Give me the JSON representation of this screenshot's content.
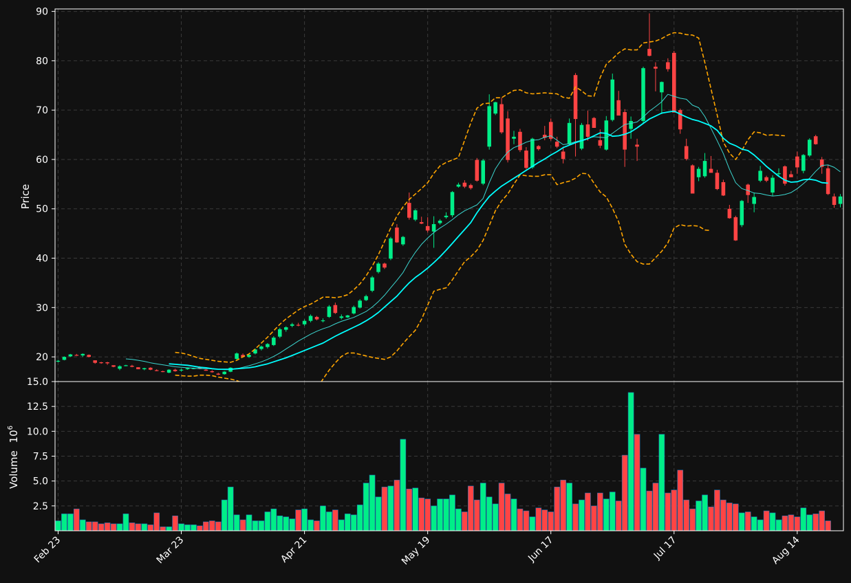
{
  "colors": {
    "background": "#111111",
    "up": "#00ee88",
    "down": "#ff4444",
    "grid": "#3a3a3a",
    "sma_short": "#3cd6d0",
    "sma_long": "#00ffff",
    "bollinger": "#ffa500",
    "text": "#ffffff"
  },
  "chart_data": {
    "type": "candlestick",
    "price_axis": {
      "label": "Price",
      "range": [
        15,
        90.5
      ],
      "ticks": [
        "20",
        "30",
        "40",
        "50",
        "60",
        "70",
        "80",
        "90"
      ]
    },
    "volume_axis": {
      "label": "Volume",
      "exponent": "6",
      "range": [
        0,
        15
      ],
      "ticks": [
        "2.5",
        "5.0",
        "7.5",
        "10.0",
        "12.5",
        "15.0"
      ]
    },
    "x_ticks": [
      {
        "label": "Feb 23",
        "i": 0
      },
      {
        "label": "Mar 23",
        "i": 20
      },
      {
        "label": "Apr 21",
        "i": 40
      },
      {
        "label": "May 19",
        "i": 60
      },
      {
        "label": "Jun 17",
        "i": 80
      },
      {
        "label": "Jul 17",
        "i": 100
      },
      {
        "label": "Aug 14",
        "i": 120
      }
    ],
    "grid": true,
    "candles_ohlc": [
      [
        19.1,
        19.4,
        18.9,
        19.2
      ],
      [
        19.4,
        20.1,
        19.3,
        20.0
      ],
      [
        20.1,
        20.6,
        20.0,
        20.5
      ],
      [
        20.4,
        20.6,
        20.2,
        20.3
      ],
      [
        20.3,
        20.7,
        20.0,
        20.6
      ],
      [
        20.4,
        20.5,
        19.9,
        20.0
      ],
      [
        19.3,
        19.3,
        18.6,
        18.8
      ],
      [
        18.9,
        19.0,
        18.6,
        18.8
      ],
      [
        18.9,
        19.0,
        18.4,
        18.7
      ],
      [
        18.3,
        18.3,
        17.9,
        18.0
      ],
      [
        17.6,
        18.3,
        17.3,
        18.1
      ],
      [
        18.2,
        18.4,
        18.1,
        18.3
      ],
      [
        18.2,
        18.4,
        17.9,
        18.0
      ],
      [
        17.9,
        17.9,
        17.5,
        17.5
      ],
      [
        17.5,
        17.8,
        17.3,
        17.7
      ],
      [
        17.8,
        17.9,
        17.3,
        17.4
      ],
      [
        17.3,
        17.5,
        17.1,
        17.2
      ],
      [
        17.1,
        17.2,
        16.9,
        17.0
      ],
      [
        16.8,
        17.5,
        16.7,
        17.4
      ],
      [
        17.4,
        17.6,
        17.0,
        17.1
      ],
      [
        17.3,
        17.6,
        17.0,
        17.4
      ],
      [
        17.5,
        17.8,
        17.4,
        17.7
      ],
      [
        17.6,
        17.8,
        17.5,
        17.7
      ],
      [
        17.9,
        18.1,
        17.5,
        17.6
      ],
      [
        17.4,
        17.5,
        17.2,
        17.2
      ],
      [
        17.1,
        17.3,
        16.8,
        16.9
      ],
      [
        16.6,
        16.8,
        16.3,
        16.4
      ],
      [
        16.5,
        17.1,
        16.4,
        17.0
      ],
      [
        17.0,
        17.9,
        16.9,
        17.8
      ],
      [
        19.6,
        20.9,
        19.4,
        20.7
      ],
      [
        20.4,
        20.7,
        19.9,
        20.0
      ],
      [
        20.0,
        20.6,
        19.8,
        20.4
      ],
      [
        20.7,
        21.7,
        20.5,
        21.5
      ],
      [
        21.6,
        22.3,
        21.3,
        22.1
      ],
      [
        22.0,
        22.8,
        21.7,
        22.6
      ],
      [
        22.4,
        24.2,
        22.2,
        23.9
      ],
      [
        24.1,
        25.9,
        23.8,
        25.6
      ],
      [
        25.5,
        26.2,
        25.1,
        26.0
      ],
      [
        26.3,
        26.9,
        26.0,
        26.6
      ],
      [
        26.5,
        26.9,
        26.2,
        26.4
      ],
      [
        26.6,
        27.6,
        26.3,
        27.3
      ],
      [
        27.3,
        28.6,
        27.0,
        28.3
      ],
      [
        28.1,
        28.3,
        27.4,
        27.6
      ],
      [
        27.3,
        27.8,
        27.0,
        27.4
      ],
      [
        28.1,
        30.5,
        27.9,
        30.2
      ],
      [
        30.5,
        31.0,
        28.7,
        28.9
      ],
      [
        27.9,
        28.6,
        27.6,
        28.2
      ],
      [
        28.0,
        28.5,
        27.9,
        28.4
      ],
      [
        28.8,
        30.4,
        28.6,
        30.1
      ],
      [
        30.0,
        31.7,
        29.8,
        31.4
      ],
      [
        31.5,
        32.6,
        31.3,
        32.3
      ],
      [
        33.4,
        36.4,
        33.1,
        36.1
      ],
      [
        37.2,
        39.2,
        36.9,
        38.9
      ],
      [
        38.9,
        39.1,
        37.8,
        38.1
      ],
      [
        39.9,
        44.3,
        39.6,
        44.0
      ],
      [
        46.2,
        46.9,
        43.1,
        43.2
      ],
      [
        42.8,
        44.5,
        42.5,
        44.3
      ],
      [
        51.2,
        53.3,
        47.8,
        48.2
      ],
      [
        47.8,
        49.9,
        47.5,
        49.7
      ],
      [
        47.3,
        48.4,
        46.9,
        47.0
      ],
      [
        46.5,
        48.3,
        45.2,
        45.6
      ],
      [
        45.4,
        48.5,
        42.1,
        46.9
      ],
      [
        47.1,
        47.9,
        46.8,
        47.6
      ],
      [
        48.3,
        49.3,
        48.0,
        48.6
      ],
      [
        48.7,
        53.6,
        48.3,
        53.4
      ],
      [
        54.5,
        55.3,
        54.3,
        54.9
      ],
      [
        55.3,
        55.8,
        54.2,
        54.5
      ],
      [
        54.8,
        55.1,
        53.9,
        54.2
      ],
      [
        59.9,
        60.3,
        55.5,
        55.7
      ],
      [
        55.1,
        60.1,
        54.8,
        59.8
      ],
      [
        62.6,
        73.2,
        62.0,
        70.8
      ],
      [
        69.3,
        71.7,
        69.0,
        71.6
      ],
      [
        71.2,
        72.5,
        65.2,
        65.5
      ],
      [
        68.3,
        69.8,
        59.4,
        59.9
      ],
      [
        64.2,
        65.8,
        63.1,
        64.6
      ],
      [
        65.6,
        66.2,
        61.5,
        61.9
      ],
      [
        61.8,
        62.5,
        58.0,
        58.3
      ],
      [
        58.4,
        64.4,
        58.1,
        64.2
      ],
      [
        62.7,
        62.9,
        61.8,
        62.1
      ],
      [
        65.0,
        66.8,
        63.9,
        64.4
      ],
      [
        67.6,
        68.3,
        63.8,
        64.2
      ],
      [
        63.6,
        64.6,
        62.3,
        62.6
      ],
      [
        61.6,
        62.6,
        59.2,
        60.1
      ],
      [
        63.1,
        68.3,
        62.9,
        67.4
      ],
      [
        77.1,
        77.5,
        60.6,
        68.2
      ],
      [
        62.2,
        67.4,
        61.9,
        67.0
      ],
      [
        67.1,
        69.9,
        63.8,
        64.6
      ],
      [
        68.4,
        68.6,
        67.2,
        66.4
      ],
      [
        63.9,
        66.1,
        62.3,
        62.8
      ],
      [
        62.0,
        68.8,
        61.8,
        67.9
      ],
      [
        68.0,
        77.4,
        67.7,
        76.2
      ],
      [
        72.0,
        73.9,
        69.2,
        68.9
      ],
      [
        69.6,
        70.2,
        58.5,
        62.0
      ],
      [
        66.2,
        68.7,
        64.2,
        67.8
      ],
      [
        63.0,
        64.2,
        59.7,
        62.6
      ],
      [
        67.8,
        78.8,
        67.2,
        78.5
      ],
      [
        82.4,
        89.6,
        80.9,
        81.0
      ],
      [
        78.8,
        79.7,
        73.8,
        78.4
      ],
      [
        73.6,
        75.8,
        69.2,
        75.7
      ],
      [
        79.7,
        80.5,
        77.8,
        78.3
      ],
      [
        81.6,
        82.0,
        70.2,
        69.5
      ],
      [
        70.0,
        70.3,
        65.2,
        66.1
      ],
      [
        62.7,
        64.2,
        59.8,
        60.1
      ],
      [
        58.8,
        59.0,
        53.9,
        53.1
      ],
      [
        56.4,
        58.5,
        55.6,
        58.1
      ],
      [
        56.6,
        61.3,
        56.3,
        59.7
      ],
      [
        58.1,
        60.7,
        57.4,
        57.3
      ],
      [
        57.3,
        57.9,
        53.8,
        54.0
      ],
      [
        55.4,
        55.9,
        52.6,
        52.7
      ],
      [
        50.0,
        50.8,
        48.0,
        48.1
      ],
      [
        48.3,
        48.6,
        43.5,
        43.6
      ],
      [
        46.7,
        51.8,
        46.3,
        51.6
      ],
      [
        54.9,
        55.1,
        51.2,
        52.8
      ],
      [
        51.0,
        53.3,
        49.3,
        52.4
      ],
      [
        55.7,
        58.7,
        55.4,
        57.7
      ],
      [
        56.4,
        56.7,
        55.4,
        55.7
      ],
      [
        53.3,
        56.8,
        52.6,
        56.3
      ],
      [
        57.1,
        58.2,
        56.7,
        57.2
      ],
      [
        58.6,
        58.8,
        54.7,
        55.1
      ],
      [
        57.0,
        57.7,
        56.6,
        56.4
      ],
      [
        60.6,
        61.6,
        57.1,
        58.4
      ],
      [
        57.7,
        61.1,
        57.2,
        60.9
      ],
      [
        60.8,
        64.3,
        60.5,
        64.0
      ],
      [
        64.7,
        65.0,
        63.0,
        63.1
      ],
      [
        60.0,
        60.5,
        57.1,
        58.5
      ],
      [
        58.2,
        58.9,
        52.8,
        53.0
      ],
      [
        52.5,
        53.1,
        50.2,
        50.8
      ],
      [
        51.0,
        53.0,
        50.3,
        52.5
      ]
    ],
    "volume": [
      1.0,
      1.7,
      1.7,
      2.2,
      1.1,
      0.9,
      0.9,
      0.7,
      0.8,
      0.7,
      0.7,
      1.7,
      0.8,
      0.7,
      0.7,
      0.6,
      1.8,
      0.4,
      0.4,
      1.5,
      0.7,
      0.6,
      0.6,
      0.5,
      0.9,
      1.0,
      0.9,
      3.1,
      4.4,
      1.6,
      1.1,
      1.6,
      1.0,
      1.0,
      1.9,
      2.2,
      1.5,
      1.4,
      1.2,
      2.1,
      2.2,
      1.1,
      1.0,
      2.5,
      1.9,
      2.1,
      1.1,
      1.7,
      1.6,
      2.6,
      4.8,
      5.6,
      3.4,
      4.4,
      4.5,
      5.1,
      9.2,
      4.2,
      4.3,
      3.3,
      3.2,
      2.5,
      3.2,
      3.2,
      3.6,
      2.2,
      1.9,
      4.5,
      3.1,
      4.8,
      3.4,
      2.7,
      4.8,
      3.7,
      3.2,
      2.2,
      2.0,
      1.4,
      2.3,
      2.1,
      1.9,
      4.4,
      5.1,
      4.8,
      2.7,
      3.1,
      3.8,
      2.5,
      3.8,
      3.2,
      3.9,
      3.0,
      7.6,
      13.9,
      9.7,
      6.3,
      4.0,
      4.8,
      9.7,
      3.8,
      4.1,
      6.1,
      3.1,
      2.2,
      3.0,
      3.6,
      2.4,
      4.1,
      3.1,
      2.8,
      2.7,
      1.8,
      1.9,
      1.4,
      1.1,
      2.0,
      1.8,
      1.1,
      1.5,
      1.6,
      1.4,
      2.3,
      1.6,
      1.7,
      2.0,
      1.0
    ],
    "sma_short": [
      null,
      null,
      null,
      null,
      null,
      null,
      null,
      null,
      null,
      null,
      null,
      19.6,
      19.5,
      19.3,
      19.1,
      18.8,
      18.6,
      18.4,
      18.2,
      18.0,
      17.9,
      17.8,
      17.7,
      17.6,
      17.6,
      17.6,
      17.5,
      17.4,
      17.4,
      17.6,
      17.9,
      18.2,
      18.6,
      19.0,
      19.5,
      20.1,
      20.8,
      21.6,
      22.4,
      23.2,
      23.9,
      24.6,
      25.2,
      25.7,
      26.1,
      26.7,
      27.2,
      27.6,
      28.0,
      28.6,
      29.2,
      30.1,
      31.2,
      32.5,
      34.0,
      35.5,
      37.1,
      39.3,
      41.2,
      42.8,
      44.1,
      45.2,
      46.1,
      46.9,
      47.8,
      48.8,
      49.6,
      50.2,
      50.8,
      52.1,
      55.3,
      58.1,
      60.0,
      61.5,
      62.4,
      62.9,
      63.5,
      63.9,
      64.0,
      64.5,
      64.8,
      63.9,
      63.0,
      63.2,
      63.6,
      63.9,
      64.3,
      64.6,
      64.5,
      64.4,
      65.3,
      66.2,
      67.1,
      67.3,
      67.6,
      68.6,
      69.8,
      70.7,
      71.7,
      73.2,
      72.8,
      72.4,
      72.2,
      71.0,
      70.5,
      68.7,
      66.3,
      63.8,
      61.2,
      58.0,
      55.3,
      54.1,
      53.7,
      53.2,
      53.1,
      52.8,
      52.6,
      52.7,
      52.9,
      53.3,
      54.1,
      55.1,
      56.2,
      57.6,
      58.8,
      58.9,
      58.4,
      57.5
    ],
    "sma_long": [
      null,
      null,
      null,
      null,
      null,
      null,
      null,
      null,
      null,
      null,
      null,
      null,
      null,
      null,
      null,
      null,
      null,
      null,
      18.6,
      18.5,
      18.4,
      18.3,
      18.1,
      17.9,
      17.8,
      17.6,
      17.5,
      17.5,
      17.5,
      17.6,
      17.7,
      17.8,
      18.0,
      18.3,
      18.6,
      19.0,
      19.4,
      19.8,
      20.3,
      20.8,
      21.3,
      21.8,
      22.3,
      22.8,
      23.5,
      24.2,
      24.8,
      25.4,
      26.0,
      26.6,
      27.3,
      28.1,
      29.0,
      30.1,
      31.2,
      32.3,
      33.7,
      35.0,
      36.1,
      37.0,
      38.0,
      39.1,
      40.3,
      41.6,
      43.0,
      44.4,
      45.8,
      47.2,
      49.2,
      50.9,
      52.5,
      53.6,
      54.6,
      55.4,
      56.2,
      57.0,
      57.8,
      58.6,
      59.4,
      60.1,
      60.9,
      61.6,
      62.4,
      62.9,
      63.4,
      63.8,
      64.2,
      64.8,
      65.4,
      65.3,
      64.7,
      64.8,
      65.1,
      65.6,
      66.4,
      67.3,
      68.2,
      68.8,
      69.4,
      69.6,
      69.8,
      69.2,
      68.6,
      68.1,
      67.8,
      67.3,
      66.8,
      65.9,
      64.3,
      63.3,
      62.8,
      62.1,
      61.8,
      60.9,
      59.8,
      58.6,
      57.6,
      56.6,
      55.8,
      55.4,
      55.5,
      55.9,
      56.0,
      55.8,
      55.3,
      55.2
    ],
    "bollinger_upper": [
      null,
      null,
      null,
      null,
      null,
      null,
      null,
      null,
      null,
      null,
      null,
      null,
      null,
      null,
      null,
      null,
      null,
      null,
      null,
      20.9,
      20.8,
      20.5,
      20.1,
      19.7,
      19.5,
      19.3,
      19.1,
      19.0,
      18.9,
      19.3,
      20.0,
      20.6,
      21.6,
      22.8,
      24.0,
      25.3,
      26.6,
      27.7,
      28.6,
      29.5,
      30.2,
      30.7,
      31.4,
      32.1,
      32.1,
      32.0,
      32.2,
      32.6,
      33.6,
      34.8,
      36.4,
      38.4,
      40.7,
      43.4,
      46.1,
      48.5,
      50.4,
      51.9,
      53.0,
      54.1,
      55.3,
      57.2,
      58.7,
      59.4,
      59.9,
      60.4,
      63.9,
      67.4,
      70.4,
      71.3,
      71.4,
      72.5,
      72.5,
      73.3,
      74.0,
      74.1,
      73.5,
      73.3,
      73.4,
      73.5,
      73.4,
      73.3,
      72.6,
      72.4,
      74.7,
      73.9,
      72.9,
      72.8,
      76.6,
      79.3,
      80.4,
      81.6,
      82.4,
      82.2,
      82.2,
      83.6,
      83.8,
      84.0,
      84.5,
      85.2,
      85.7,
      85.6,
      85.3,
      85.2,
      84.6,
      79.6,
      74.3,
      69.0,
      63.5,
      61.3,
      60.0,
      61.8,
      64.0,
      65.6,
      65.4,
      64.9,
      65.0,
      64.9,
      64.8
    ],
    "bollinger_lower": [
      null,
      null,
      null,
      null,
      null,
      null,
      null,
      null,
      null,
      null,
      null,
      null,
      null,
      null,
      null,
      null,
      null,
      null,
      null,
      16.3,
      16.2,
      16.1,
      16.1,
      16.3,
      16.3,
      16.2,
      15.9,
      15.7,
      15.5,
      15.2,
      14.7,
      14.0,
      13.4,
      12.8,
      12.2,
      11.7,
      11.0,
      10.9,
      10.8,
      10.6,
      10.8,
      12.0,
      13.5,
      15.5,
      17.3,
      18.8,
      20.1,
      20.8,
      20.8,
      20.5,
      20.2,
      19.9,
      19.7,
      19.5,
      20.0,
      21.2,
      22.7,
      24.1,
      25.4,
      27.6,
      30.5,
      33.3,
      33.7,
      34.0,
      35.6,
      37.5,
      39.3,
      40.3,
      41.6,
      43.6,
      46.6,
      49.6,
      51.6,
      53.0,
      55.0,
      56.9,
      56.7,
      56.6,
      56.6,
      56.9,
      56.9,
      54.9,
      55.3,
      55.6,
      56.2,
      57.2,
      57.1,
      55.2,
      53.4,
      52.4,
      50.1,
      47.4,
      42.8,
      40.8,
      39.3,
      38.8,
      38.8,
      40.1,
      41.4,
      43.1,
      46.1,
      46.8,
      46.5,
      46.6,
      46.5,
      45.7,
      45.6
    ]
  }
}
